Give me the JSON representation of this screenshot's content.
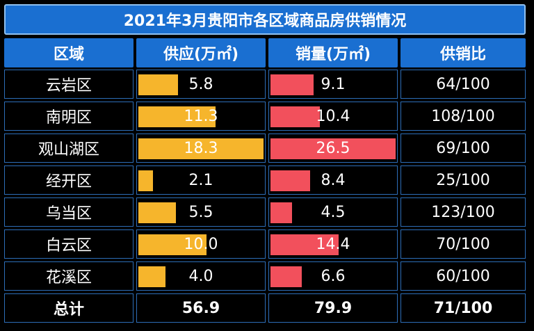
{
  "title": "2021年3月贵阳市各区域商品房供销情况",
  "headers": {
    "district": "区域",
    "supply": "供应(万㎡)",
    "sales": "销量(万㎡)",
    "ratio": "供销比"
  },
  "chart_data": {
    "type": "table",
    "title": "2021年3月贵阳市各区域商品房供销情况",
    "supply_color": "#f6b52c",
    "sales_color": "#f2505c",
    "rows": [
      {
        "district": "云岩区",
        "supply": 5.8,
        "supply_label": "5.8",
        "sales": 9.1,
        "sales_label": "9.1",
        "ratio": "64/100"
      },
      {
        "district": "南明区",
        "supply": 11.3,
        "supply_label": "11.3",
        "sales": 10.4,
        "sales_label": "10.4",
        "ratio": "108/100"
      },
      {
        "district": "观山湖区",
        "supply": 18.3,
        "supply_label": "18.3",
        "sales": 26.5,
        "sales_label": "26.5",
        "ratio": "69/100"
      },
      {
        "district": "经开区",
        "supply": 2.1,
        "supply_label": "2.1",
        "sales": 8.4,
        "sales_label": "8.4",
        "ratio": "25/100"
      },
      {
        "district": "乌当区",
        "supply": 5.5,
        "supply_label": "5.5",
        "sales": 4.5,
        "sales_label": "4.5",
        "ratio": "123/100"
      },
      {
        "district": "白云区",
        "supply": 10.0,
        "supply_label": "10.0",
        "sales": 14.4,
        "sales_label": "14.4",
        "ratio": "70/100"
      },
      {
        "district": "花溪区",
        "supply": 4.0,
        "supply_label": "4.0",
        "sales": 6.6,
        "sales_label": "6.6",
        "ratio": "60/100"
      }
    ],
    "total": {
      "district": "总计",
      "supply": "56.9",
      "sales": "79.9",
      "ratio": "71/100"
    }
  }
}
